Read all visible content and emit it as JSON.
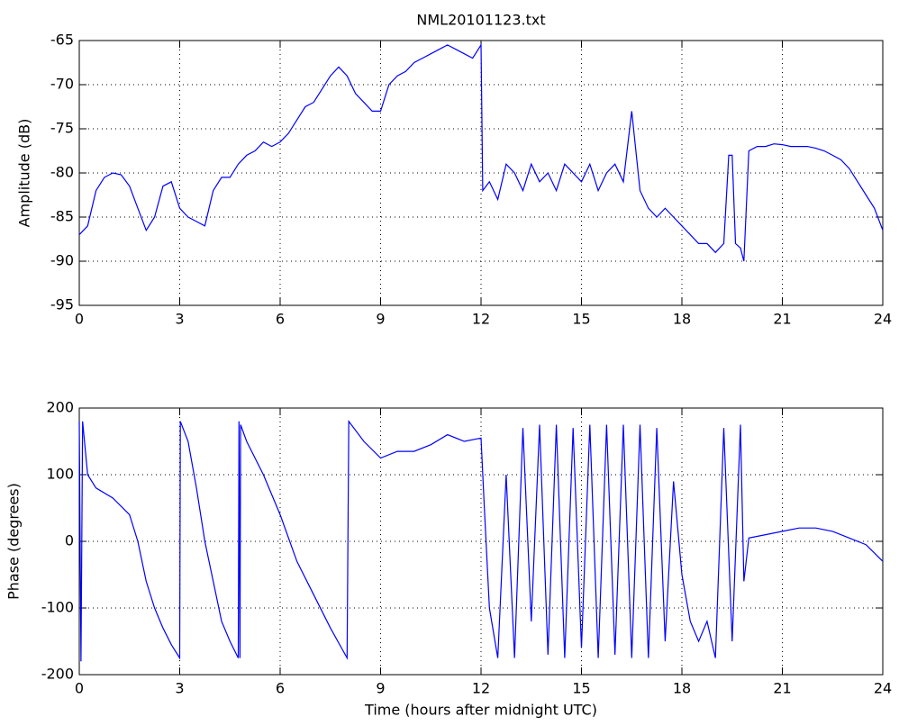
{
  "chart_data": [
    {
      "type": "line",
      "title": "NML20101123.txt",
      "ylabel": "Amplitude (dB)",
      "xlim": [
        0,
        24
      ],
      "xticks": [
        0,
        3,
        6,
        9,
        12,
        15,
        18,
        21,
        24
      ],
      "ylim": [
        -95,
        -65
      ],
      "yticks": [
        -95,
        -90,
        -85,
        -80,
        -75,
        -70,
        -65
      ],
      "grid": true,
      "x": [
        0,
        0.25,
        0.5,
        0.75,
        1,
        1.25,
        1.5,
        1.75,
        2,
        2.25,
        2.5,
        2.75,
        3,
        3.25,
        3.5,
        3.75,
        4,
        4.25,
        4.5,
        4.75,
        5,
        5.25,
        5.5,
        5.75,
        6,
        6.25,
        6.5,
        6.75,
        7,
        7.25,
        7.5,
        7.75,
        8,
        8.25,
        8.5,
        8.75,
        9,
        9.25,
        9.5,
        9.75,
        10,
        10.25,
        10.5,
        10.75,
        11,
        11.25,
        11.5,
        11.75,
        12,
        12.05,
        12.25,
        12.5,
        12.75,
        13,
        13.25,
        13.5,
        13.75,
        14,
        14.25,
        14.5,
        14.75,
        15,
        15.25,
        15.5,
        15.75,
        16,
        16.25,
        16.5,
        16.75,
        17,
        17.25,
        17.5,
        17.75,
        18,
        18.25,
        18.5,
        18.75,
        19,
        19.25,
        19.4,
        19.5,
        19.6,
        19.75,
        19.85,
        20,
        20.25,
        20.5,
        20.75,
        21,
        21.25,
        21.5,
        21.75,
        22,
        22.25,
        22.5,
        22.75,
        23,
        23.25,
        23.5,
        23.75,
        24
      ],
      "series": [
        {
          "name": "Amplitude",
          "color": "#0000ff",
          "values": [
            -87,
            -86,
            -82,
            -80.5,
            -80,
            -80.2,
            -81.5,
            -84,
            -86.5,
            -85,
            -81.5,
            -81,
            -84,
            -85,
            -85.5,
            -86,
            -82,
            -80.5,
            -80.5,
            -79,
            -78,
            -77.5,
            -76.5,
            -77,
            -76.5,
            -75.5,
            -74,
            -72.5,
            -72,
            -70.5,
            -69,
            -68,
            -69,
            -71,
            -72,
            -73,
            -73,
            -70,
            -69,
            -68.5,
            -67.5,
            -67,
            -66.5,
            -66,
            -65.5,
            -66,
            -66.5,
            -67,
            -65.5,
            -82,
            -81,
            -83,
            -79,
            -80,
            -82,
            -79,
            -81,
            -80,
            -82,
            -79,
            -80,
            -81,
            -79,
            -82,
            -80,
            -79,
            -81,
            -73,
            -82,
            -84,
            -85,
            -84,
            -85,
            -86,
            -87,
            -88,
            -88,
            -89,
            -88,
            -78,
            -78,
            -88,
            -88.5,
            -90,
            -77.5,
            -77,
            -77,
            -76.7,
            -76.8,
            -77,
            -77,
            -77,
            -77.2,
            -77.5,
            -78,
            -78.5,
            -79.5,
            -81,
            -82.5,
            -84,
            -86.5
          ]
        }
      ]
    },
    {
      "type": "line",
      "ylabel": "Phase (degrees)",
      "xlabel": "Time (hours after midnight UTC)",
      "xlim": [
        0,
        24
      ],
      "xticks": [
        0,
        3,
        6,
        9,
        12,
        15,
        18,
        21,
        24
      ],
      "ylim": [
        -200,
        200
      ],
      "yticks": [
        -200,
        -100,
        0,
        100,
        200
      ],
      "grid": true,
      "x": [
        0,
        0.05,
        0.1,
        0.25,
        0.5,
        1,
        1.5,
        1.75,
        2,
        2.25,
        2.5,
        2.75,
        3,
        3.02,
        3.25,
        3.5,
        3.75,
        4,
        4.25,
        4.5,
        4.75,
        4.77,
        4.8,
        4.82,
        5,
        5.5,
        6,
        6.5,
        7,
        7.5,
        8,
        8.05,
        8.5,
        9,
        9.5,
        10,
        10.5,
        11,
        11.5,
        12,
        12.1,
        12.25,
        12.5,
        12.75,
        13,
        13.25,
        13.5,
        13.75,
        14,
        14.25,
        14.5,
        14.75,
        15,
        15.25,
        15.5,
        15.75,
        16,
        16.25,
        16.5,
        16.75,
        17,
        17.25,
        17.5,
        17.75,
        18,
        18.25,
        18.5,
        18.75,
        19,
        19.25,
        19.5,
        19.75,
        19.85,
        20,
        20.5,
        21,
        21.5,
        22,
        22.5,
        23,
        23.5,
        24
      ],
      "series": [
        {
          "name": "Phase",
          "color": "#0000ff",
          "values": [
            180,
            -180,
            180,
            100,
            80,
            65,
            40,
            0,
            -60,
            -100,
            -130,
            -155,
            -175,
            180,
            150,
            80,
            0,
            -60,
            -120,
            -150,
            -175,
            180,
            -175,
            175,
            150,
            100,
            40,
            -30,
            -80,
            -130,
            -175,
            180,
            150,
            125,
            135,
            135,
            145,
            160,
            150,
            155,
            50,
            -100,
            -175,
            100,
            -175,
            170,
            -120,
            175,
            -170,
            175,
            -175,
            170,
            -160,
            175,
            -175,
            175,
            -170,
            175,
            -175,
            175,
            -175,
            170,
            -150,
            90,
            -50,
            -120,
            -150,
            -120,
            -175,
            170,
            -150,
            175,
            -60,
            5,
            10,
            15,
            20,
            20,
            15,
            5,
            -5,
            -30
          ]
        }
      ]
    }
  ]
}
